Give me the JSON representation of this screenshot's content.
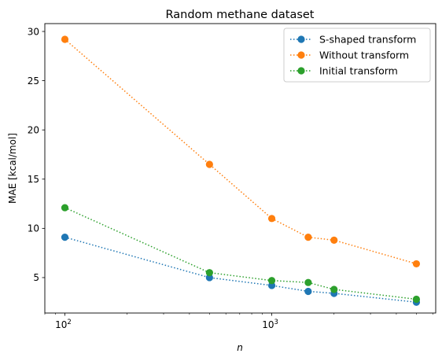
{
  "chart_data": {
    "type": "line",
    "title": "Random methane dataset",
    "xlabel": "n",
    "ylabel": "MAE [kcal/mol]",
    "xscale": "log",
    "xlim": [
      80,
      6200
    ],
    "ylim": [
      1.4,
      30.8
    ],
    "x_ticks": [
      {
        "value": 100,
        "label": "10",
        "exp": "2"
      },
      {
        "value": 1000,
        "label": "10",
        "exp": "3"
      }
    ],
    "y_ticks": [
      5,
      10,
      15,
      20,
      25,
      30
    ],
    "grid": false,
    "legend_position": "top-right",
    "series": [
      {
        "name": "S-shaped transform",
        "color": "#1f77b4",
        "x": [
          100,
          500,
          1000,
          1500,
          2000,
          5000
        ],
        "y": [
          9.1,
          5.0,
          4.2,
          3.6,
          3.4,
          2.5
        ]
      },
      {
        "name": "Without transform",
        "color": "#ff7f0e",
        "x": [
          100,
          500,
          1000,
          1500,
          2000,
          5000
        ],
        "y": [
          29.2,
          16.5,
          11.0,
          9.1,
          8.8,
          6.4
        ]
      },
      {
        "name": "Initial transform",
        "color": "#2ca02c",
        "x": [
          100,
          500,
          1000,
          1500,
          2000,
          5000
        ],
        "y": [
          12.1,
          5.5,
          4.7,
          4.5,
          3.8,
          2.8
        ]
      }
    ]
  }
}
